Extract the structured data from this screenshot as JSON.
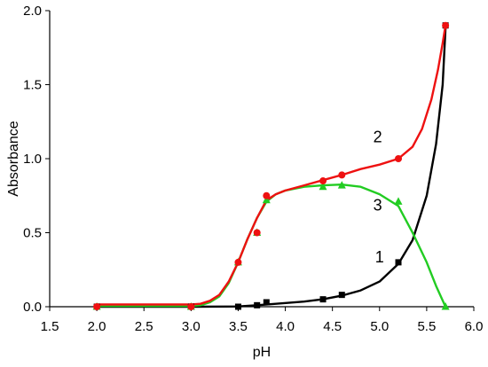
{
  "chart_data": {
    "type": "line",
    "xlabel": "pH",
    "ylabel": "Absorbance",
    "xlim": [
      1.5,
      6.0
    ],
    "ylim": [
      0.0,
      2.0
    ],
    "xticks": [
      "1.5",
      "2.0",
      "2.5",
      "3.0",
      "3.5",
      "4.0",
      "4.5",
      "5.0",
      "5.5",
      "6.0"
    ],
    "yticks": [
      "0.0",
      "0.5",
      "1.0",
      "1.5",
      "2.0"
    ],
    "grid": false,
    "series": [
      {
        "name": "1",
        "color": "#000000",
        "marker": "square",
        "points": [
          [
            2.0,
            0.0
          ],
          [
            3.0,
            0.0
          ],
          [
            3.5,
            0.0
          ],
          [
            3.7,
            0.01
          ],
          [
            3.8,
            0.03
          ],
          [
            4.4,
            0.05
          ],
          [
            4.6,
            0.08
          ],
          [
            5.2,
            0.3
          ],
          [
            5.7,
            1.9
          ]
        ],
        "curve": [
          [
            2.0,
            0.0
          ],
          [
            3.0,
            0.0
          ],
          [
            3.5,
            0.002
          ],
          [
            3.7,
            0.01
          ],
          [
            3.9,
            0.02
          ],
          [
            4.2,
            0.035
          ],
          [
            4.4,
            0.05
          ],
          [
            4.6,
            0.075
          ],
          [
            4.8,
            0.11
          ],
          [
            5.0,
            0.17
          ],
          [
            5.2,
            0.29
          ],
          [
            5.35,
            0.45
          ],
          [
            5.5,
            0.75
          ],
          [
            5.6,
            1.1
          ],
          [
            5.67,
            1.5
          ],
          [
            5.7,
            1.88
          ]
        ],
        "label_position": {
          "x": 5.0,
          "y": 0.3
        }
      },
      {
        "name": "2",
        "color": "#ee1111",
        "marker": "circle",
        "points": [
          [
            2.0,
            0.0
          ],
          [
            3.0,
            0.0
          ],
          [
            3.5,
            0.3
          ],
          [
            3.7,
            0.5
          ],
          [
            3.8,
            0.75
          ],
          [
            4.4,
            0.85
          ],
          [
            4.6,
            0.89
          ],
          [
            5.2,
            1.0
          ],
          [
            5.7,
            1.9
          ]
        ],
        "curve": [
          [
            2.0,
            0.015
          ],
          [
            3.0,
            0.015
          ],
          [
            3.1,
            0.02
          ],
          [
            3.2,
            0.04
          ],
          [
            3.3,
            0.08
          ],
          [
            3.4,
            0.17
          ],
          [
            3.5,
            0.3
          ],
          [
            3.6,
            0.46
          ],
          [
            3.7,
            0.6
          ],
          [
            3.8,
            0.72
          ],
          [
            3.9,
            0.76
          ],
          [
            4.0,
            0.785
          ],
          [
            4.2,
            0.82
          ],
          [
            4.4,
            0.855
          ],
          [
            4.6,
            0.89
          ],
          [
            4.8,
            0.93
          ],
          [
            5.0,
            0.96
          ],
          [
            5.2,
            1.0
          ],
          [
            5.35,
            1.08
          ],
          [
            5.45,
            1.2
          ],
          [
            5.55,
            1.4
          ],
          [
            5.62,
            1.6
          ],
          [
            5.67,
            1.78
          ],
          [
            5.7,
            1.9
          ]
        ],
        "label_position": {
          "x": 4.98,
          "y": 1.11
        }
      },
      {
        "name": "3",
        "color": "#22cc22",
        "marker": "triangle",
        "points": [
          [
            2.0,
            0.0
          ],
          [
            3.0,
            0.0
          ],
          [
            3.5,
            0.3
          ],
          [
            3.7,
            0.5
          ],
          [
            3.8,
            0.72
          ],
          [
            4.4,
            0.81
          ],
          [
            4.6,
            0.82
          ],
          [
            5.2,
            0.71
          ],
          [
            5.7,
            0.0
          ]
        ],
        "curve": [
          [
            2.0,
            0.005
          ],
          [
            3.0,
            0.005
          ],
          [
            3.1,
            0.01
          ],
          [
            3.2,
            0.03
          ],
          [
            3.3,
            0.07
          ],
          [
            3.4,
            0.16
          ],
          [
            3.5,
            0.3
          ],
          [
            3.6,
            0.46
          ],
          [
            3.7,
            0.6
          ],
          [
            3.8,
            0.71
          ],
          [
            3.9,
            0.76
          ],
          [
            4.0,
            0.785
          ],
          [
            4.2,
            0.81
          ],
          [
            4.4,
            0.82
          ],
          [
            4.6,
            0.825
          ],
          [
            4.8,
            0.81
          ],
          [
            5.0,
            0.76
          ],
          [
            5.2,
            0.68
          ],
          [
            5.35,
            0.5
          ],
          [
            5.5,
            0.3
          ],
          [
            5.6,
            0.14
          ],
          [
            5.7,
            0.0
          ]
        ],
        "label_position": {
          "x": 4.98,
          "y": 0.65
        }
      }
    ]
  }
}
